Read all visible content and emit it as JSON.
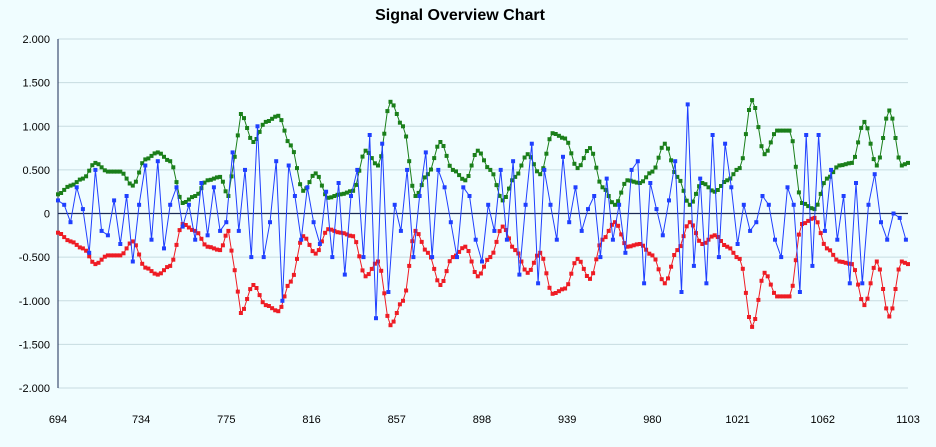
{
  "chart_data": {
    "type": "line",
    "title": "Signal Overview Chart",
    "xlabel": "",
    "ylabel": "",
    "x_range": [
      694,
      1103
    ],
    "ylim": [
      -2,
      2
    ],
    "y_ticks": [
      2,
      1.5,
      1,
      0.5,
      0,
      -0.5,
      -1,
      -1.5,
      -2
    ],
    "y_tick_labels": [
      "2.000",
      "1.500",
      "1.000",
      "0.500",
      "0",
      "-0.500",
      "-1.000",
      "-1.500",
      "-2.000"
    ],
    "x_ticks": [
      694,
      734,
      775,
      816,
      857,
      898,
      939,
      980,
      1021,
      1062,
      1103
    ],
    "x_tick_labels": [
      "694",
      "734",
      "775",
      "816",
      "857",
      "898",
      "939",
      "980",
      "1021",
      "1062",
      "1103"
    ],
    "grid": "horizontal",
    "legend": "none",
    "colors": {
      "upper": "#1a7f1a",
      "signal": "#1f3fff",
      "lower": "#ee1c24",
      "grid": "#c7dce0",
      "axis": "#1a2a55"
    },
    "series_envelope": {
      "x": [
        694,
        700,
        706,
        712,
        718,
        724,
        730,
        736,
        742,
        748,
        754,
        760,
        766,
        772,
        776,
        779,
        782,
        788,
        794,
        800,
        806,
        812,
        818,
        824,
        830,
        836,
        842,
        848,
        854,
        860,
        866,
        872,
        878,
        884,
        890,
        896,
        902,
        908,
        914,
        920,
        926,
        932,
        938,
        944,
        950,
        956,
        962,
        968,
        974,
        980,
        986,
        992,
        998,
        1004,
        1010,
        1016,
        1022,
        1028,
        1034,
        1040,
        1046,
        1052,
        1058,
        1064,
        1070,
        1076,
        1082,
        1088,
        1094,
        1100,
        1103
      ],
      "upper": [
        0.22,
        0.32,
        0.4,
        0.58,
        0.48,
        0.48,
        0.32,
        0.62,
        0.7,
        0.6,
        0.12,
        0.2,
        0.38,
        0.42,
        0.2,
        0.65,
        1.14,
        0.82,
        1.05,
        1.12,
        0.78,
        0.26,
        0.46,
        0.18,
        0.22,
        0.26,
        0.72,
        0.55,
        1.28,
        1.0,
        0.2,
        0.45,
        0.82,
        0.5,
        0.38,
        0.72,
        0.5,
        0.15,
        0.42,
        0.68,
        0.45,
        0.92,
        0.86,
        0.52,
        0.75,
        0.3,
        0.1,
        0.38,
        0.35,
        0.48,
        0.8,
        0.42,
        0.1,
        0.35,
        0.25,
        0.38,
        0.52,
        1.3,
        0.68,
        0.95,
        0.95,
        0.12,
        0.05,
        0.4,
        0.55,
        0.58,
        1.05,
        0.55,
        1.18,
        0.55,
        0.58
      ],
      "lower": [
        -0.22,
        -0.32,
        -0.4,
        -0.58,
        -0.48,
        -0.48,
        -0.32,
        -0.62,
        -0.7,
        -0.6,
        -0.12,
        -0.2,
        -0.38,
        -0.42,
        -0.2,
        -0.65,
        -1.14,
        -0.82,
        -1.05,
        -1.12,
        -0.78,
        -0.26,
        -0.46,
        -0.18,
        -0.22,
        -0.26,
        -0.72,
        -0.55,
        -1.28,
        -1.0,
        -0.2,
        -0.45,
        -0.82,
        -0.5,
        -0.38,
        -0.72,
        -0.5,
        -0.15,
        -0.42,
        -0.68,
        -0.45,
        -0.92,
        -0.86,
        -0.52,
        -0.75,
        -0.3,
        -0.1,
        -0.38,
        -0.35,
        -0.48,
        -0.8,
        -0.42,
        -0.1,
        -0.35,
        -0.25,
        -0.38,
        -0.52,
        -1.3,
        -0.68,
        -0.95,
        -0.95,
        -0.12,
        -0.05,
        -0.4,
        -0.55,
        -0.58,
        -1.05,
        -0.55,
        -1.18,
        -0.55,
        -0.58
      ]
    },
    "series_signal": {
      "x": [
        694,
        697,
        700,
        703,
        706,
        709,
        712,
        715,
        718,
        721,
        724,
        727,
        730,
        733,
        736,
        739,
        742,
        745,
        748,
        751,
        754,
        757,
        760,
        763,
        766,
        769,
        772,
        775,
        778,
        781,
        784,
        787,
        790,
        793,
        796,
        799,
        802,
        805,
        808,
        811,
        814,
        817,
        820,
        823,
        826,
        829,
        832,
        835,
        838,
        841,
        844,
        847,
        850,
        853,
        856,
        859,
        862,
        865,
        868,
        871,
        874,
        877,
        880,
        883,
        886,
        889,
        892,
        895,
        898,
        901,
        904,
        907,
        910,
        913,
        916,
        919,
        922,
        925,
        928,
        931,
        934,
        937,
        940,
        943,
        946,
        949,
        952,
        955,
        958,
        961,
        964,
        967,
        970,
        973,
        976,
        979,
        982,
        985,
        988,
        991,
        994,
        997,
        1000,
        1003,
        1006,
        1009,
        1012,
        1015,
        1018,
        1021,
        1024,
        1027,
        1030,
        1033,
        1036,
        1039,
        1042,
        1045,
        1048,
        1051,
        1054,
        1057,
        1060,
        1063,
        1066,
        1069,
        1072,
        1075,
        1078,
        1081,
        1084,
        1087,
        1090,
        1093,
        1096,
        1099,
        1102
      ],
      "values": [
        0.15,
        0.1,
        -0.1,
        0.3,
        0.05,
        -0.45,
        0.5,
        -0.2,
        -0.25,
        0.15,
        -0.35,
        0.2,
        -0.55,
        0.1,
        0.55,
        -0.3,
        0.6,
        -0.4,
        0.1,
        0.3,
        -0.15,
        0.1,
        -0.3,
        0.35,
        -0.25,
        0.3,
        -0.2,
        -0.1,
        0.7,
        -0.2,
        0.5,
        -0.5,
        1.0,
        -0.5,
        -0.1,
        0.6,
        -1.0,
        0.55,
        0.2,
        -0.3,
        0.3,
        -0.1,
        -0.35,
        0.25,
        -0.5,
        0.35,
        -0.7,
        0.2,
        0.5,
        -0.5,
        0.9,
        -1.2,
        0.8,
        -0.9,
        0.1,
        -0.2,
        0.5,
        -0.5,
        0.2,
        0.7,
        -0.5,
        0.5,
        0.3,
        -0.1,
        -0.5,
        0.3,
        0.2,
        -0.3,
        -0.55,
        0.1,
        -0.2,
        0.5,
        -0.3,
        0.6,
        -0.7,
        0.1,
        0.8,
        -0.8,
        0.5,
        0.1,
        -0.3,
        0.65,
        -0.1,
        0.3,
        -0.2,
        0.05,
        0.2,
        -0.5,
        0.4,
        -0.3,
        0.1,
        -0.45,
        0.5,
        0.6,
        -0.8,
        0.35,
        0.05,
        -0.25,
        0.15,
        0.6,
        -0.9,
        1.25,
        -0.6,
        0.4,
        -0.8,
        0.9,
        -0.5,
        0.8,
        0.3,
        -0.35,
        0.1,
        -0.2,
        -0.1,
        0.2,
        0.1,
        -0.3,
        -0.5,
        0.3,
        0.1,
        -0.9,
        0.9,
        -0.6,
        0.9,
        -0.2,
        0.5,
        -0.3,
        0.2,
        -0.8,
        0.35,
        -0.8,
        0.1,
        0.45,
        -0.1,
        -0.3,
        0.0,
        -0.05,
        -0.3
      ]
    }
  }
}
